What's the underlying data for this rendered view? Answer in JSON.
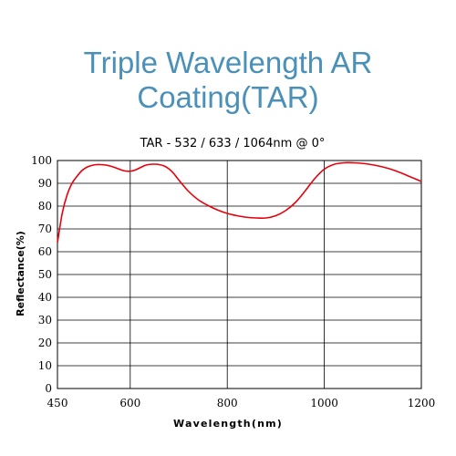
{
  "title_lines": [
    "Triple Wavelength AR",
    "Coating(TAR)"
  ],
  "chart_data": {
    "type": "line",
    "title": "TAR - 532 / 633 / 1064nm @ 0°",
    "xlabel": "Wavelength(nm)",
    "ylabel": "Reflectance(%)",
    "xlim": [
      450,
      1200
    ],
    "ylim": [
      0,
      100
    ],
    "x_ticks": [
      450,
      600,
      800,
      1000,
      1200
    ],
    "y_ticks": [
      0,
      10,
      20,
      30,
      40,
      50,
      60,
      70,
      80,
      90,
      100
    ],
    "grid": true,
    "line_color": "#e8000b",
    "series": [
      {
        "x": [
          450,
          460,
          470,
          480,
          490,
          500,
          510,
          520,
          530,
          540,
          550,
          560,
          570,
          580,
          590,
          600,
          610,
          620,
          630,
          640,
          650,
          660,
          670,
          680,
          690,
          700,
          720,
          740,
          760,
          780,
          800,
          820,
          840,
          860,
          880,
          900,
          920,
          940,
          960,
          980,
          1000,
          1020,
          1040,
          1060,
          1080,
          1100,
          1120,
          1140,
          1160,
          1180,
          1200
        ],
        "y": [
          64,
          77,
          85,
          90,
          93,
          95.5,
          97,
          97.8,
          98.2,
          98.2,
          98,
          97.5,
          96.8,
          96,
          95.4,
          95.3,
          95.8,
          96.8,
          97.8,
          98.3,
          98.4,
          98.2,
          97.6,
          96.3,
          94.2,
          91.5,
          86.5,
          82.8,
          80.3,
          78.3,
          76.8,
          75.8,
          75.1,
          74.8,
          74.8,
          75.8,
          78,
          81.5,
          86.5,
          92,
          96.2,
          98.3,
          99,
          99,
          98.7,
          98.1,
          97.2,
          96,
          94.4,
          92.6,
          90.8
        ]
      }
    ]
  }
}
